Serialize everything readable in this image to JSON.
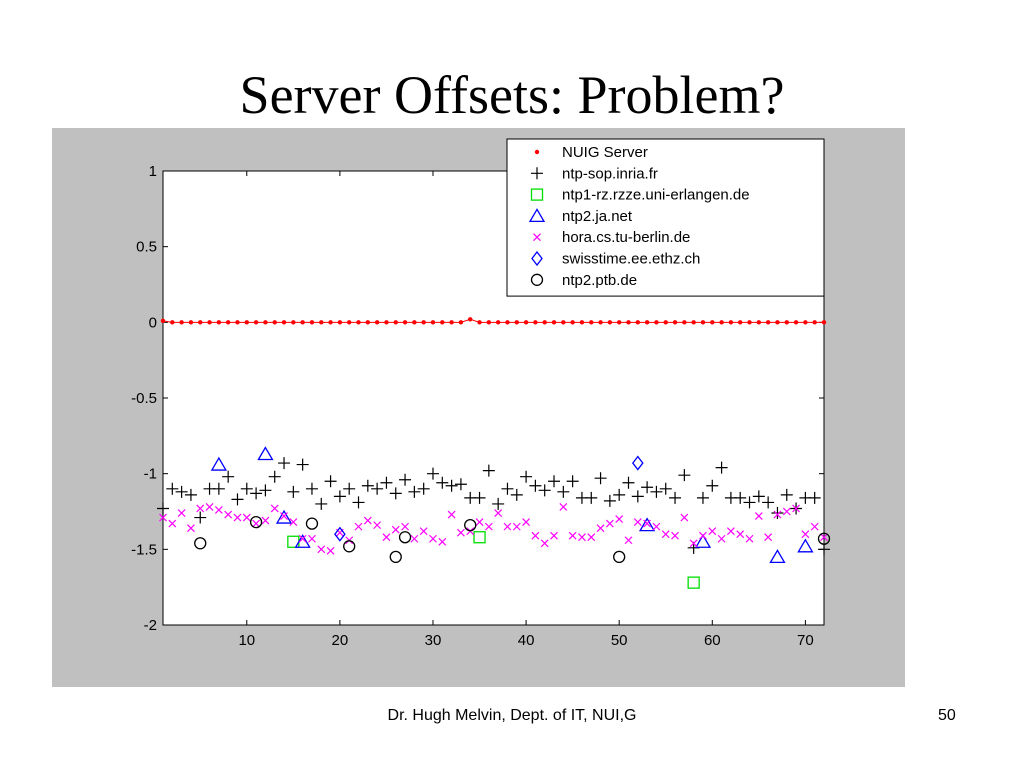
{
  "slide": {
    "title": "Server Offsets: Problem?",
    "footer": "Dr. Hugh Melvin, Dept. of IT, NUI,G",
    "page_number": "50"
  },
  "chart_data": {
    "type": "scatter",
    "title": "",
    "xlabel": "",
    "ylabel": "",
    "xlim": [
      1,
      72
    ],
    "ylim": [
      -2,
      1
    ],
    "xticks": [
      10,
      20,
      30,
      40,
      50,
      60,
      70
    ],
    "yticks": [
      1,
      0.5,
      0,
      -0.5,
      -1,
      -1.5,
      -2
    ],
    "grid": false,
    "legend_placement": "top-right",
    "series": [
      {
        "name": "NUIG Server",
        "marker": "dot",
        "color": "#ff0000",
        "connect": true,
        "x": [
          1,
          2,
          3,
          4,
          5,
          6,
          7,
          8,
          9,
          10,
          11,
          12,
          13,
          14,
          15,
          16,
          17,
          18,
          19,
          20,
          21,
          22,
          23,
          24,
          25,
          26,
          27,
          28,
          29,
          30,
          31,
          32,
          33,
          34,
          35,
          36,
          37,
          38,
          39,
          40,
          41,
          42,
          43,
          44,
          45,
          46,
          47,
          48,
          49,
          50,
          51,
          52,
          53,
          54,
          55,
          56,
          57,
          58,
          59,
          60,
          61,
          62,
          63,
          64,
          65,
          66,
          67,
          68,
          69,
          70,
          71,
          72
        ],
        "y": [
          0.01,
          0.0,
          0.0,
          0.0,
          0.0,
          0.0,
          0.0,
          0.0,
          0.0,
          0.0,
          0.0,
          0.0,
          0.0,
          0.0,
          0.0,
          0.0,
          0.0,
          0.0,
          0.0,
          0.0,
          0.0,
          0.0,
          0.0,
          0.0,
          0.0,
          0.0,
          0.0,
          0.0,
          0.0,
          0.0,
          0.0,
          0.0,
          0.0,
          0.02,
          0.0,
          0.0,
          0.0,
          0.0,
          0.0,
          0.0,
          0.0,
          0.0,
          0.0,
          0.0,
          0.0,
          0.0,
          0.0,
          0.0,
          0.0,
          0.0,
          0.0,
          0.0,
          0.0,
          0.0,
          0.0,
          0.0,
          0.0,
          0.0,
          0.0,
          0.0,
          0.0,
          0.0,
          0.0,
          0.0,
          0.0,
          0.0,
          0.0,
          0.0,
          0.0,
          0.0,
          0.0,
          0.0
        ]
      },
      {
        "name": "ntp-sop.inria.fr",
        "marker": "plus",
        "color": "#000000",
        "x": [
          1,
          2,
          3,
          4,
          5,
          6,
          7,
          8,
          9,
          10,
          11,
          12,
          13,
          14,
          15,
          16,
          17,
          18,
          19,
          20,
          21,
          22,
          23,
          24,
          25,
          26,
          27,
          28,
          29,
          30,
          31,
          32,
          33,
          34,
          35,
          36,
          37,
          38,
          39,
          40,
          41,
          42,
          43,
          44,
          45,
          46,
          47,
          48,
          49,
          50,
          51,
          52,
          53,
          54,
          55,
          56,
          57,
          58,
          59,
          60,
          61,
          62,
          63,
          64,
          65,
          66,
          67,
          68,
          69,
          70,
          71,
          72
        ],
        "y": [
          -1.23,
          -1.1,
          -1.12,
          -1.14,
          -1.29,
          -1.1,
          -1.1,
          -1.02,
          -1.17,
          -1.1,
          -1.13,
          -1.11,
          -1.02,
          -0.93,
          -1.12,
          -0.94,
          -1.1,
          -1.2,
          -1.05,
          -1.15,
          -1.1,
          -1.19,
          -1.08,
          -1.1,
          -1.06,
          -1.13,
          -1.04,
          -1.12,
          -1.1,
          -1.0,
          -1.06,
          -1.08,
          -1.07,
          -1.16,
          -1.16,
          -0.98,
          -1.2,
          -1.1,
          -1.14,
          -1.02,
          -1.08,
          -1.11,
          -1.05,
          -1.12,
          -1.05,
          -1.16,
          -1.16,
          -1.03,
          -1.18,
          -1.14,
          -1.06,
          -1.15,
          -1.09,
          -1.12,
          -1.1,
          -1.16,
          -1.01,
          -1.49,
          -1.16,
          -1.08,
          -0.96,
          -1.16,
          -1.16,
          -1.19,
          -1.15,
          -1.19,
          -1.26,
          -1.14,
          -1.23,
          -1.16,
          -1.16,
          -1.5
        ]
      },
      {
        "name": "ntp1-rz.rzze.uni-erlangen.de",
        "marker": "square",
        "color": "#00dd00",
        "x": [
          15,
          35,
          58
        ],
        "y": [
          -1.45,
          -1.42,
          -1.72
        ]
      },
      {
        "name": "ntp2.ja.net",
        "marker": "triangle",
        "color": "#0000ff",
        "x": [
          7,
          12,
          14,
          16,
          53,
          59,
          67,
          70
        ],
        "y": [
          -0.94,
          -0.87,
          -1.29,
          -1.45,
          -1.34,
          -1.45,
          -1.55,
          -1.48
        ]
      },
      {
        "name": "hora.cs.tu-berlin.de",
        "marker": "x",
        "color": "#ff00ff",
        "x": [
          1,
          2,
          3,
          4,
          5,
          6,
          7,
          8,
          9,
          10,
          11,
          12,
          13,
          14,
          15,
          16,
          17,
          18,
          19,
          20,
          21,
          22,
          23,
          24,
          25,
          26,
          27,
          28,
          29,
          30,
          31,
          32,
          33,
          34,
          35,
          36,
          37,
          38,
          39,
          40,
          41,
          42,
          43,
          44,
          45,
          46,
          47,
          48,
          49,
          50,
          51,
          52,
          53,
          54,
          55,
          56,
          57,
          58,
          59,
          60,
          61,
          62,
          63,
          64,
          65,
          66,
          67,
          68,
          69,
          70,
          71,
          72
        ],
        "y": [
          -1.29,
          -1.33,
          -1.26,
          -1.36,
          -1.23,
          -1.22,
          -1.24,
          -1.27,
          -1.29,
          -1.29,
          -1.33,
          -1.31,
          -1.23,
          -1.28,
          -1.32,
          -1.43,
          -1.43,
          -1.5,
          -1.51,
          -1.39,
          -1.44,
          -1.35,
          -1.31,
          -1.34,
          -1.42,
          -1.37,
          -1.35,
          -1.43,
          -1.38,
          -1.43,
          -1.45,
          -1.27,
          -1.39,
          -1.38,
          -1.32,
          -1.35,
          -1.26,
          -1.35,
          -1.35,
          -1.32,
          -1.41,
          -1.46,
          -1.41,
          -1.22,
          -1.41,
          -1.42,
          -1.42,
          -1.36,
          -1.33,
          -1.3,
          -1.44,
          -1.32,
          -1.33,
          -1.35,
          -1.4,
          -1.41,
          -1.29,
          -1.46,
          -1.41,
          -1.38,
          -1.43,
          -1.38,
          -1.4,
          -1.43,
          -1.28,
          -1.42,
          -1.27,
          -1.25,
          -1.23,
          -1.4,
          -1.35,
          -1.42
        ]
      },
      {
        "name": "swisstime.ee.ethz.ch",
        "marker": "diamond",
        "color": "#0000ff",
        "x": [
          20,
          52
        ],
        "y": [
          -1.4,
          -0.93
        ]
      },
      {
        "name": "ntp2.ptb.de",
        "marker": "circle",
        "color": "#000000",
        "x": [
          5,
          11,
          17,
          21,
          26,
          27,
          34,
          50,
          72
        ],
        "y": [
          -1.46,
          -1.32,
          -1.33,
          -1.48,
          -1.55,
          -1.42,
          -1.34,
          -1.55,
          -1.43
        ]
      }
    ]
  }
}
